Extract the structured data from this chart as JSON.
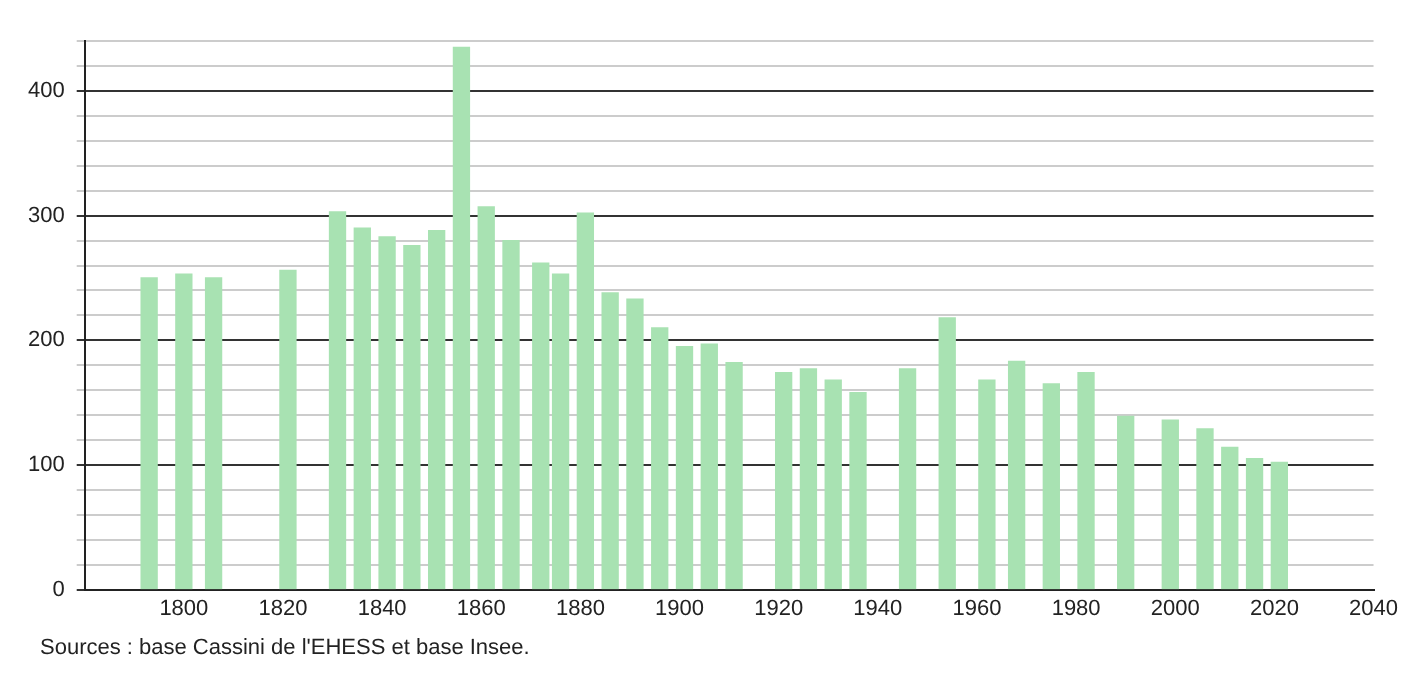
{
  "chart_data": {
    "type": "bar",
    "x": [
      1793,
      1800,
      1806,
      1821,
      1831,
      1836,
      1841,
      1846,
      1851,
      1856,
      1861,
      1866,
      1872,
      1876,
      1881,
      1886,
      1891,
      1896,
      1901,
      1906,
      1911,
      1921,
      1926,
      1931,
      1936,
      1946,
      1954,
      1962,
      1968,
      1975,
      1982,
      1990,
      1999,
      2006,
      2011,
      2016,
      2021
    ],
    "values": [
      250,
      253,
      250,
      256,
      303,
      290,
      283,
      276,
      288,
      435,
      307,
      280,
      262,
      253,
      302,
      238,
      233,
      210,
      195,
      197,
      182,
      174,
      177,
      168,
      158,
      177,
      218,
      168,
      183,
      165,
      174,
      139,
      136,
      129,
      114,
      105,
      102
    ],
    "color": "#a8e2b2",
    "xlim": [
      1780,
      2040
    ],
    "xticks": [
      1800,
      1820,
      1840,
      1860,
      1880,
      1900,
      1920,
      1940,
      1960,
      1980,
      2000,
      2020,
      2040
    ],
    "ylim": [
      0,
      440
    ],
    "yticks": [
      0,
      {
        "value": 20,
        "label": null
      },
      {
        "value": 40,
        "label": null
      },
      {
        "value": 60,
        "label": null
      },
      {
        "value": 80,
        "label": null
      },
      100,
      {
        "value": 120,
        "label": null
      },
      {
        "value": 140,
        "label": null
      },
      {
        "value": 160,
        "label": null
      },
      {
        "value": 180,
        "label": null
      },
      200,
      {
        "value": 220,
        "label": null
      },
      {
        "value": 240,
        "label": null
      },
      {
        "value": 260,
        "label": null
      },
      {
        "value": 280,
        "label": null
      },
      300,
      {
        "value": 320,
        "label": null
      },
      {
        "value": 340,
        "label": null
      },
      {
        "value": 360,
        "label": null
      },
      {
        "value": 380,
        "label": null
      },
      400,
      {
        "value": 420,
        "label": null
      },
      {
        "value": 440,
        "label": null
      }
    ],
    "grid": "y",
    "annotations": [
      "Sources : base Cassini de l'EHESS et base Insee."
    ]
  }
}
